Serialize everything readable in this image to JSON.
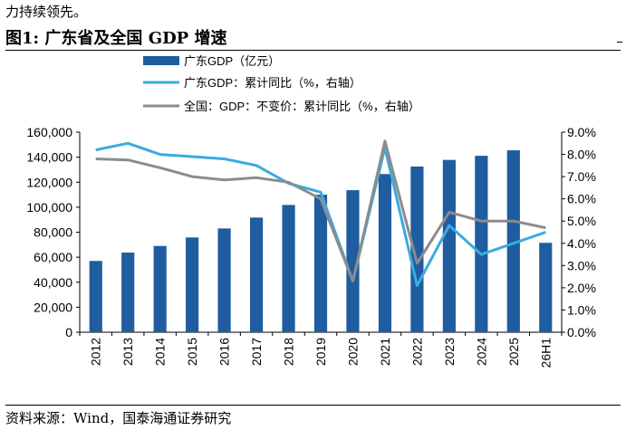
{
  "intro_text": "力持续领先。",
  "figure_title": "图1:  广东省及全国 GDP 增速",
  "source_text": "资料来源：Wind，国泰海通证券研究",
  "chart_data": {
    "type": "bar+line",
    "categories": [
      "2012",
      "2013",
      "2014",
      "2015",
      "2016",
      "2017",
      "2018",
      "2019",
      "2020",
      "2021",
      "2022",
      "2023",
      "2024",
      "2025",
      "26H1"
    ],
    "bar_series": {
      "name": "广东GDP（亿元）",
      "color": "#1f5ca0",
      "values": [
        57000,
        63700,
        69000,
        75800,
        83000,
        91700,
        101800,
        110000,
        113600,
        126500,
        132500,
        137800,
        141100,
        145500,
        71500
      ]
    },
    "line_series": [
      {
        "name": "广东GDP：累计同比（%，右轴）",
        "color": "#3aabe0",
        "values": [
          8.2,
          8.5,
          8.0,
          7.9,
          7.8,
          7.5,
          6.7,
          6.3,
          2.3,
          8.3,
          2.1,
          4.8,
          3.5,
          4.0,
          4.5
        ]
      },
      {
        "name": "全国：GDP：不变价：累计同比（%，右轴）",
        "color": "#8c8c8c",
        "values": [
          7.8,
          7.75,
          7.4,
          7.0,
          6.85,
          6.95,
          6.75,
          6.0,
          2.3,
          8.6,
          3.1,
          5.4,
          5.0,
          5.0,
          4.7
        ]
      }
    ],
    "y_left": {
      "min": 0,
      "max": 160000,
      "step": 20000,
      "tick_labels": [
        "0",
        "20,000",
        "40,000",
        "60,000",
        "80,000",
        "100,000",
        "120,000",
        "140,000",
        "160,000"
      ]
    },
    "y_right": {
      "min": 0,
      "max": 9,
      "step": 1,
      "tick_labels": [
        "0.0%",
        "1.0%",
        "2.0%",
        "3.0%",
        "4.0%",
        "5.0%",
        "6.0%",
        "7.0%",
        "8.0%",
        "9.0%"
      ]
    },
    "legend_position": "top-left",
    "grid": false
  }
}
